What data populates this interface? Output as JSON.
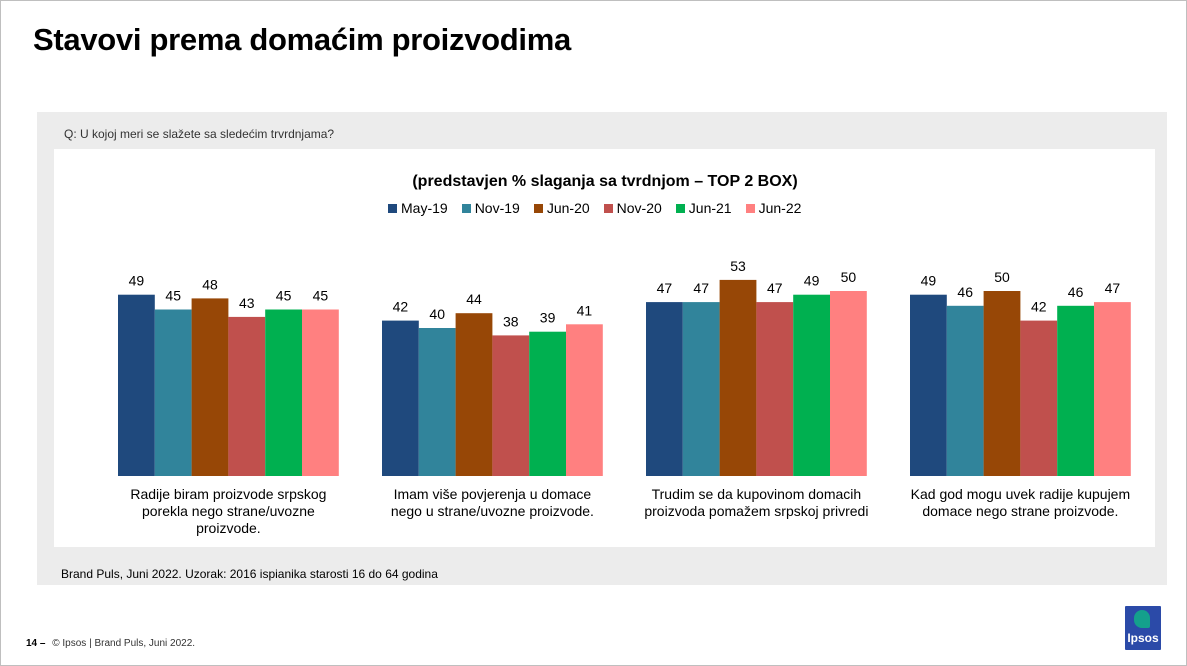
{
  "page": {
    "title": "Stavovi prema domaćim proizvodima",
    "question": "Q: U kojoj meri se slažete sa sledećim trvrdnjama?",
    "source": "Brand Puls, Juni 2022. Uzorak: 2016 ispianika starosti 16 do 64 godina",
    "footer_page": "14 –",
    "footer_text": "© Ipsos | Brand Puls, Juni 2022.",
    "logo_text": "Ipsos"
  },
  "chart_data": {
    "type": "bar",
    "title": "(predstavjen % slaganja sa tvrdnjom – TOP 2 BOX)",
    "legend_position": "top",
    "ylim": [
      0,
      60
    ],
    "grid": false,
    "categories": [
      "Radije biram proizvode srpskog porekla nego strane/uvozne proizvode.",
      "Imam više povjerenja u domace nego u strane/uvozne proizvode.",
      "Trudim se da kupovinom domacih proizvoda pomažem srpskoj privredi",
      "Kad god mogu uvek radije kupujem domace nego strane proizvode."
    ],
    "series": [
      {
        "name": "May-19",
        "color": "#1f497d",
        "values": [
          49,
          42,
          47,
          49
        ]
      },
      {
        "name": "Nov-19",
        "color": "#31849b",
        "values": [
          45,
          40,
          47,
          46
        ]
      },
      {
        "name": "Jun-20",
        "color": "#974706",
        "values": [
          48,
          44,
          53,
          50
        ]
      },
      {
        "name": "Nov-20",
        "color": "#c0504d",
        "values": [
          43,
          38,
          47,
          42
        ]
      },
      {
        "name": "Jun-21",
        "color": "#00b050",
        "values": [
          45,
          39,
          49,
          46
        ]
      },
      {
        "name": "Jun-22",
        "color": "#ff8080",
        "values": [
          45,
          41,
          50,
          47
        ]
      }
    ]
  }
}
